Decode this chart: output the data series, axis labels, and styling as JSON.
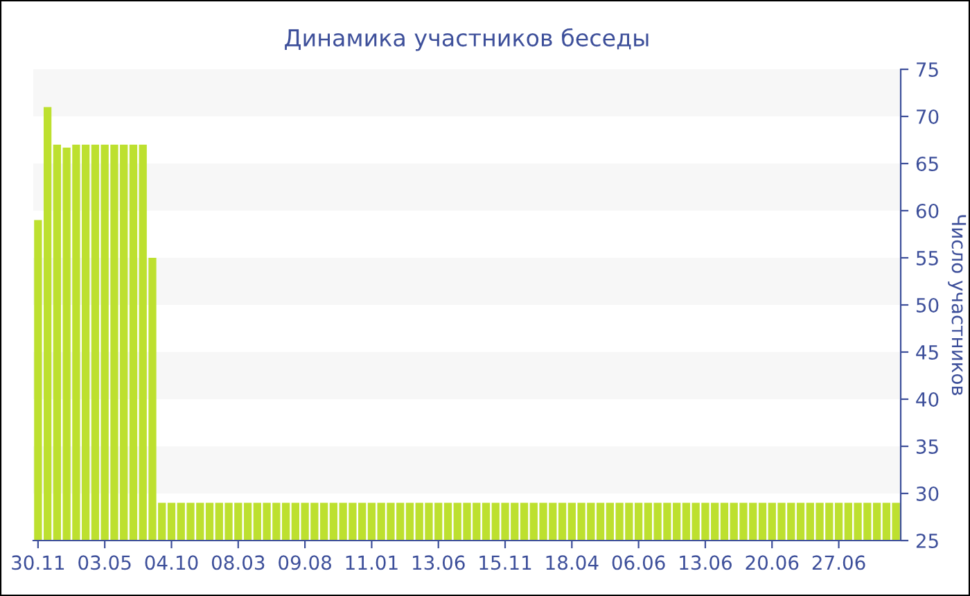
{
  "chart_data": {
    "type": "bar",
    "title": "Динамика участников беседы",
    "ylabel": "Число участников",
    "categories": [
      "30.11",
      null,
      null,
      null,
      null,
      null,
      null,
      "03.05",
      null,
      null,
      null,
      null,
      null,
      null,
      "04.10",
      null,
      null,
      null,
      null,
      null,
      null,
      "08.03",
      null,
      null,
      null,
      null,
      null,
      null,
      "09.08",
      null,
      null,
      null,
      null,
      null,
      null,
      "11.01",
      null,
      null,
      null,
      null,
      null,
      null,
      "13.06",
      null,
      null,
      null,
      null,
      null,
      null,
      "15.11",
      null,
      null,
      null,
      null,
      null,
      null,
      "18.04",
      null,
      null,
      null,
      null,
      null,
      null,
      "06.06",
      null,
      null,
      null,
      null,
      null,
      null,
      "13.06",
      null,
      null,
      null,
      null,
      null,
      null,
      "20.06",
      null,
      null,
      null,
      null,
      null,
      null,
      "27.06",
      null,
      null,
      null,
      null,
      null,
      null
    ],
    "values": [
      59,
      71,
      67,
      66.7,
      67,
      67,
      67,
      67,
      67,
      67,
      67,
      67,
      55,
      29,
      29,
      29,
      29,
      29,
      29,
      29,
      29,
      29,
      29,
      29,
      29,
      29,
      29,
      29,
      29,
      29,
      29,
      29,
      29,
      29,
      29,
      29,
      29,
      29,
      29,
      29,
      29,
      29,
      29,
      29,
      29,
      29,
      29,
      29,
      29,
      29,
      29,
      29,
      29,
      29,
      29,
      29,
      29,
      29,
      29,
      29,
      29,
      29,
      29,
      29,
      29,
      29,
      29,
      29,
      29,
      29,
      29,
      29,
      29,
      29,
      29,
      29,
      29,
      29,
      29,
      29,
      29,
      29,
      29,
      29,
      29,
      29,
      29,
      29,
      29,
      29,
      29
    ],
    "color": "#bde02f",
    "ylim": [
      25,
      75
    ],
    "yticks": [
      25,
      30,
      35,
      40,
      45,
      50,
      55,
      60,
      65,
      70,
      75
    ],
    "bands": [
      {
        "axis": "y",
        "from": 30,
        "to": 35,
        "color": "#f7f7f7"
      },
      {
        "axis": "y",
        "from": 40,
        "to": 45,
        "color": "#f7f7f7"
      },
      {
        "axis": "y",
        "from": 50,
        "to": 55,
        "color": "#f7f7f7"
      },
      {
        "axis": "y",
        "from": 60,
        "to": 65,
        "color": "#f7f7f7"
      },
      {
        "axis": "y",
        "from": 70,
        "to": 75,
        "color": "#f7f7f7"
      }
    ],
    "grid": false,
    "legend": false
  }
}
